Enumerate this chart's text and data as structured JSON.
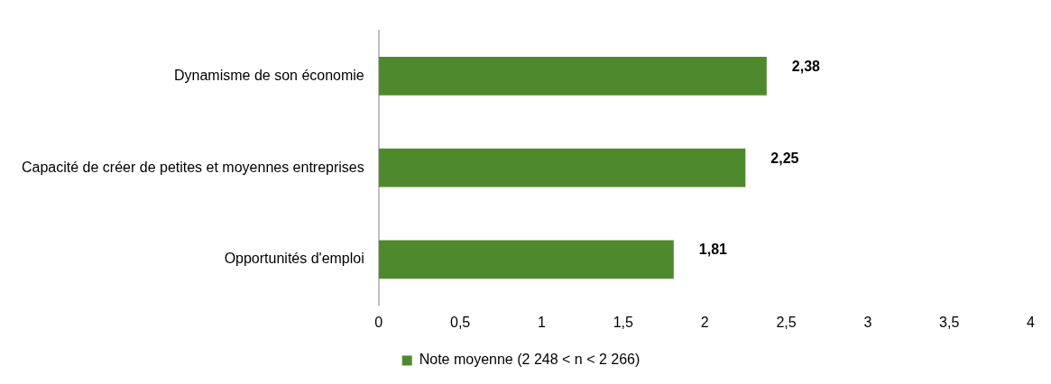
{
  "chart_data": {
    "type": "bar",
    "orientation": "horizontal",
    "categories": [
      "Dynamisme de son économie",
      "Capacité de créer de petites et moyennes entreprises",
      "Opportunités d'emploi"
    ],
    "series": [
      {
        "name": "Note moyenne (2 248 < n < 2 266)",
        "color": "#4e8a2d",
        "values": [
          2.38,
          2.25,
          1.81
        ],
        "value_labels": [
          "2,38",
          "2,25",
          "1,81"
        ]
      }
    ],
    "xlim": [
      0,
      4
    ],
    "xticks": [
      0,
      {
        "value": 0.5,
        "label": "0,5"
      },
      1,
      {
        "value": 1.5,
        "label": "1,5"
      },
      2,
      {
        "value": 2.5,
        "label": "2,5"
      },
      3,
      {
        "value": 3.5,
        "label": "3,5"
      },
      4
    ],
    "grid": false,
    "legend": "bottom"
  }
}
